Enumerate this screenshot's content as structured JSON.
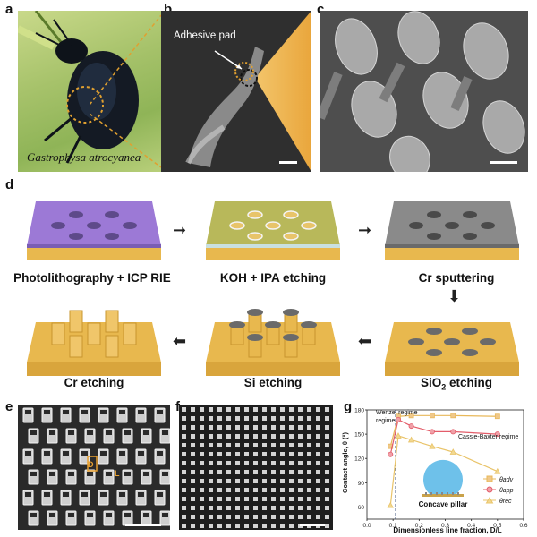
{
  "panels": {
    "a": {
      "letter": "a",
      "caption": "Gastrophysa atrocyanea"
    },
    "b": {
      "letter": "b",
      "annotation": "Adhesive pad"
    },
    "c": {
      "letter": "c"
    },
    "d": {
      "letter": "d",
      "steps": [
        {
          "label": "Photolithography + ICP RIE"
        },
        {
          "label": "KOH + IPA etching"
        },
        {
          "label": "Cr sputtering"
        },
        {
          "label": "Cr etching"
        },
        {
          "label": "Si etching"
        },
        {
          "label": "SiO",
          "sub": "2",
          "tail": " etching"
        }
      ]
    },
    "e": {
      "letter": "e",
      "markers": [
        "D",
        "L"
      ]
    },
    "f": {
      "letter": "f"
    },
    "g": {
      "letter": "g"
    }
  },
  "colors": {
    "adv": "#e8b85a",
    "app": "#e35d6a",
    "rec": "#e9c46a",
    "gold": "#e8b84e",
    "purple": "#9c79d6",
    "olive": "#b8b85a",
    "gray": "#8a8a8a"
  },
  "chart_data": {
    "type": "line",
    "xlabel": "Dimensionless line fraction, D/L",
    "ylabel": "Contact angle, θ (°)",
    "xlim": [
      0.0,
      0.6
    ],
    "ylim": [
      45,
      180
    ],
    "xticks": [
      "0.0",
      "0.1",
      "0.2",
      "0.3",
      "0.4",
      "0.5",
      "0.6"
    ],
    "yticks": [
      "60",
      "90",
      "120",
      "150",
      "180"
    ],
    "vline_x": 0.11,
    "regions": [
      "Wenzel regime",
      "Cassie-Baxter regime"
    ],
    "inset_label": "Concave pillar",
    "legend": {
      "placement": "right",
      "entries": [
        "θadv",
        "θapp",
        "θrec"
      ]
    },
    "series": [
      {
        "name": "θadv",
        "marker": "square",
        "x": [
          0.09,
          0.12,
          0.17,
          0.25,
          0.33,
          0.5
        ],
        "y": [
          135,
          172,
          173,
          173,
          173,
          172
        ]
      },
      {
        "name": "θapp",
        "marker": "circle",
        "x": [
          0.09,
          0.12,
          0.17,
          0.25,
          0.33,
          0.5
        ],
        "y": [
          125,
          168,
          160,
          153,
          153,
          150
        ]
      },
      {
        "name": "θrec",
        "marker": "triangle",
        "x": [
          0.09,
          0.12,
          0.17,
          0.25,
          0.33,
          0.5
        ],
        "y": [
          62,
          148,
          143,
          135,
          128,
          104
        ]
      }
    ]
  }
}
